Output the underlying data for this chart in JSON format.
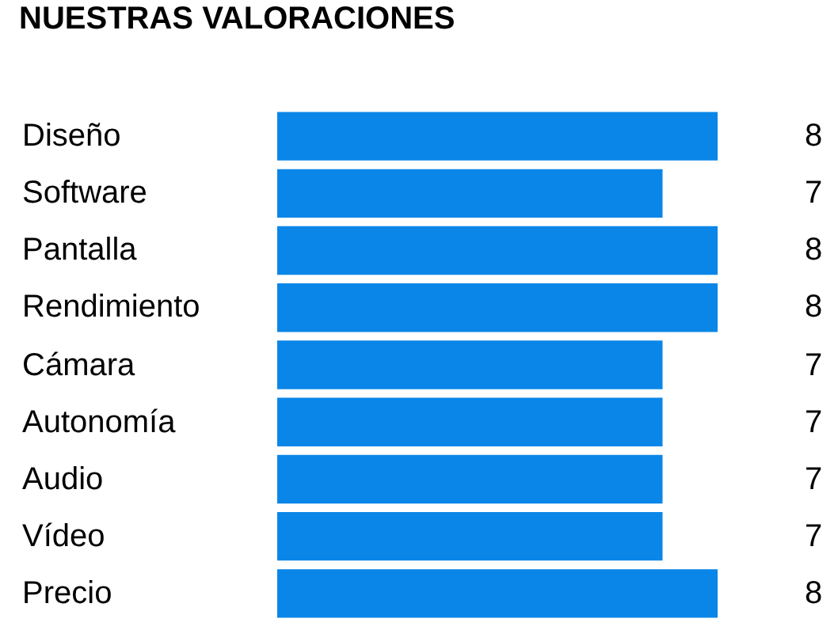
{
  "chart_data": {
    "type": "bar",
    "orientation": "horizontal",
    "title": "NUESTRAS VALORACIONES",
    "categories": [
      "Diseño",
      "Software",
      "Pantalla",
      "Rendimiento",
      "Cámara",
      "Autonomía",
      "Audio",
      "Vídeo",
      "Precio"
    ],
    "values": [
      8,
      7,
      8,
      8,
      7,
      7,
      7,
      7,
      8
    ],
    "color": "#0a86e8",
    "data_labels": true,
    "legend": false
  }
}
